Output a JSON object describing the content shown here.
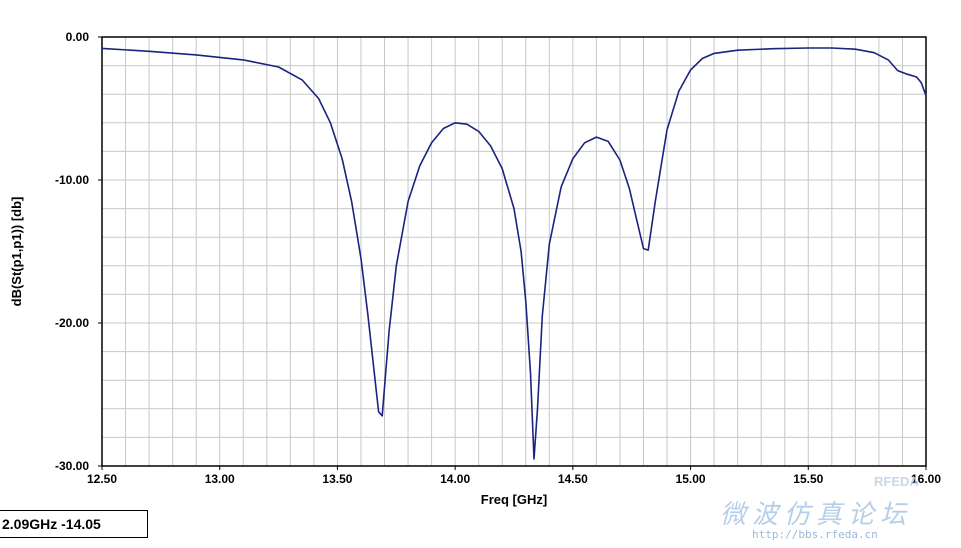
{
  "readout": {
    "text": "2.09GHz -14.05"
  },
  "watermark": {
    "title": "微波仿真论坛",
    "url": "http://bbs.rfeda.cn",
    "mark": "RFEDA"
  },
  "colors": {
    "curve": "#1a237e",
    "grid": "#c8c8c8",
    "axis": "#000000"
  },
  "chart_data": {
    "type": "line",
    "title": "",
    "xlabel": "Freq [GHz]",
    "ylabel": "dB(St(p1,p1)) [db]",
    "xlim": [
      12.5,
      16.0
    ],
    "ylim": [
      -30.0,
      0.0
    ],
    "x_ticks": [
      "12.50",
      "13.00",
      "13.50",
      "14.00",
      "14.50",
      "15.00",
      "15.50",
      "16.00"
    ],
    "y_ticks": [
      "0.00",
      "-10.00",
      "-20.00",
      "-30.00"
    ],
    "grid": true,
    "series": [
      {
        "points": [
          [
            12.5,
            -0.8
          ],
          [
            12.7,
            -1.0
          ],
          [
            12.9,
            -1.25
          ],
          [
            13.1,
            -1.6
          ],
          [
            13.25,
            -2.1
          ],
          [
            13.35,
            -3.0
          ],
          [
            13.42,
            -4.3
          ],
          [
            13.47,
            -6.0
          ],
          [
            13.52,
            -8.5
          ],
          [
            13.56,
            -11.5
          ],
          [
            13.6,
            -15.5
          ],
          [
            13.63,
            -19.5
          ],
          [
            13.66,
            -24.0
          ],
          [
            13.675,
            -26.2
          ],
          [
            13.69,
            -26.5
          ],
          [
            13.7,
            -24.5
          ],
          [
            13.72,
            -20.5
          ],
          [
            13.75,
            -16.0
          ],
          [
            13.8,
            -11.5
          ],
          [
            13.85,
            -9.0
          ],
          [
            13.9,
            -7.4
          ],
          [
            13.95,
            -6.4
          ],
          [
            14.0,
            -6.0
          ],
          [
            14.05,
            -6.1
          ],
          [
            14.1,
            -6.6
          ],
          [
            14.15,
            -7.6
          ],
          [
            14.2,
            -9.2
          ],
          [
            14.25,
            -12.0
          ],
          [
            14.28,
            -15.0
          ],
          [
            14.3,
            -18.5
          ],
          [
            14.32,
            -23.5
          ],
          [
            14.335,
            -29.5
          ],
          [
            14.35,
            -26.0
          ],
          [
            14.37,
            -19.5
          ],
          [
            14.4,
            -14.5
          ],
          [
            14.45,
            -10.5
          ],
          [
            14.5,
            -8.5
          ],
          [
            14.55,
            -7.4
          ],
          [
            14.6,
            -7.0
          ],
          [
            14.65,
            -7.3
          ],
          [
            14.7,
            -8.6
          ],
          [
            14.74,
            -10.6
          ],
          [
            14.77,
            -12.7
          ],
          [
            14.8,
            -14.8
          ],
          [
            14.82,
            -14.9
          ],
          [
            14.85,
            -11.5
          ],
          [
            14.9,
            -6.5
          ],
          [
            14.95,
            -3.8
          ],
          [
            15.0,
            -2.3
          ],
          [
            15.05,
            -1.5
          ],
          [
            15.1,
            -1.15
          ],
          [
            15.2,
            -0.92
          ],
          [
            15.35,
            -0.82
          ],
          [
            15.5,
            -0.77
          ],
          [
            15.6,
            -0.77
          ],
          [
            15.7,
            -0.85
          ],
          [
            15.78,
            -1.1
          ],
          [
            15.84,
            -1.6
          ],
          [
            15.88,
            -2.35
          ],
          [
            15.92,
            -2.6
          ],
          [
            15.96,
            -2.8
          ],
          [
            15.98,
            -3.2
          ],
          [
            16.0,
            -4.1
          ]
        ]
      }
    ]
  }
}
